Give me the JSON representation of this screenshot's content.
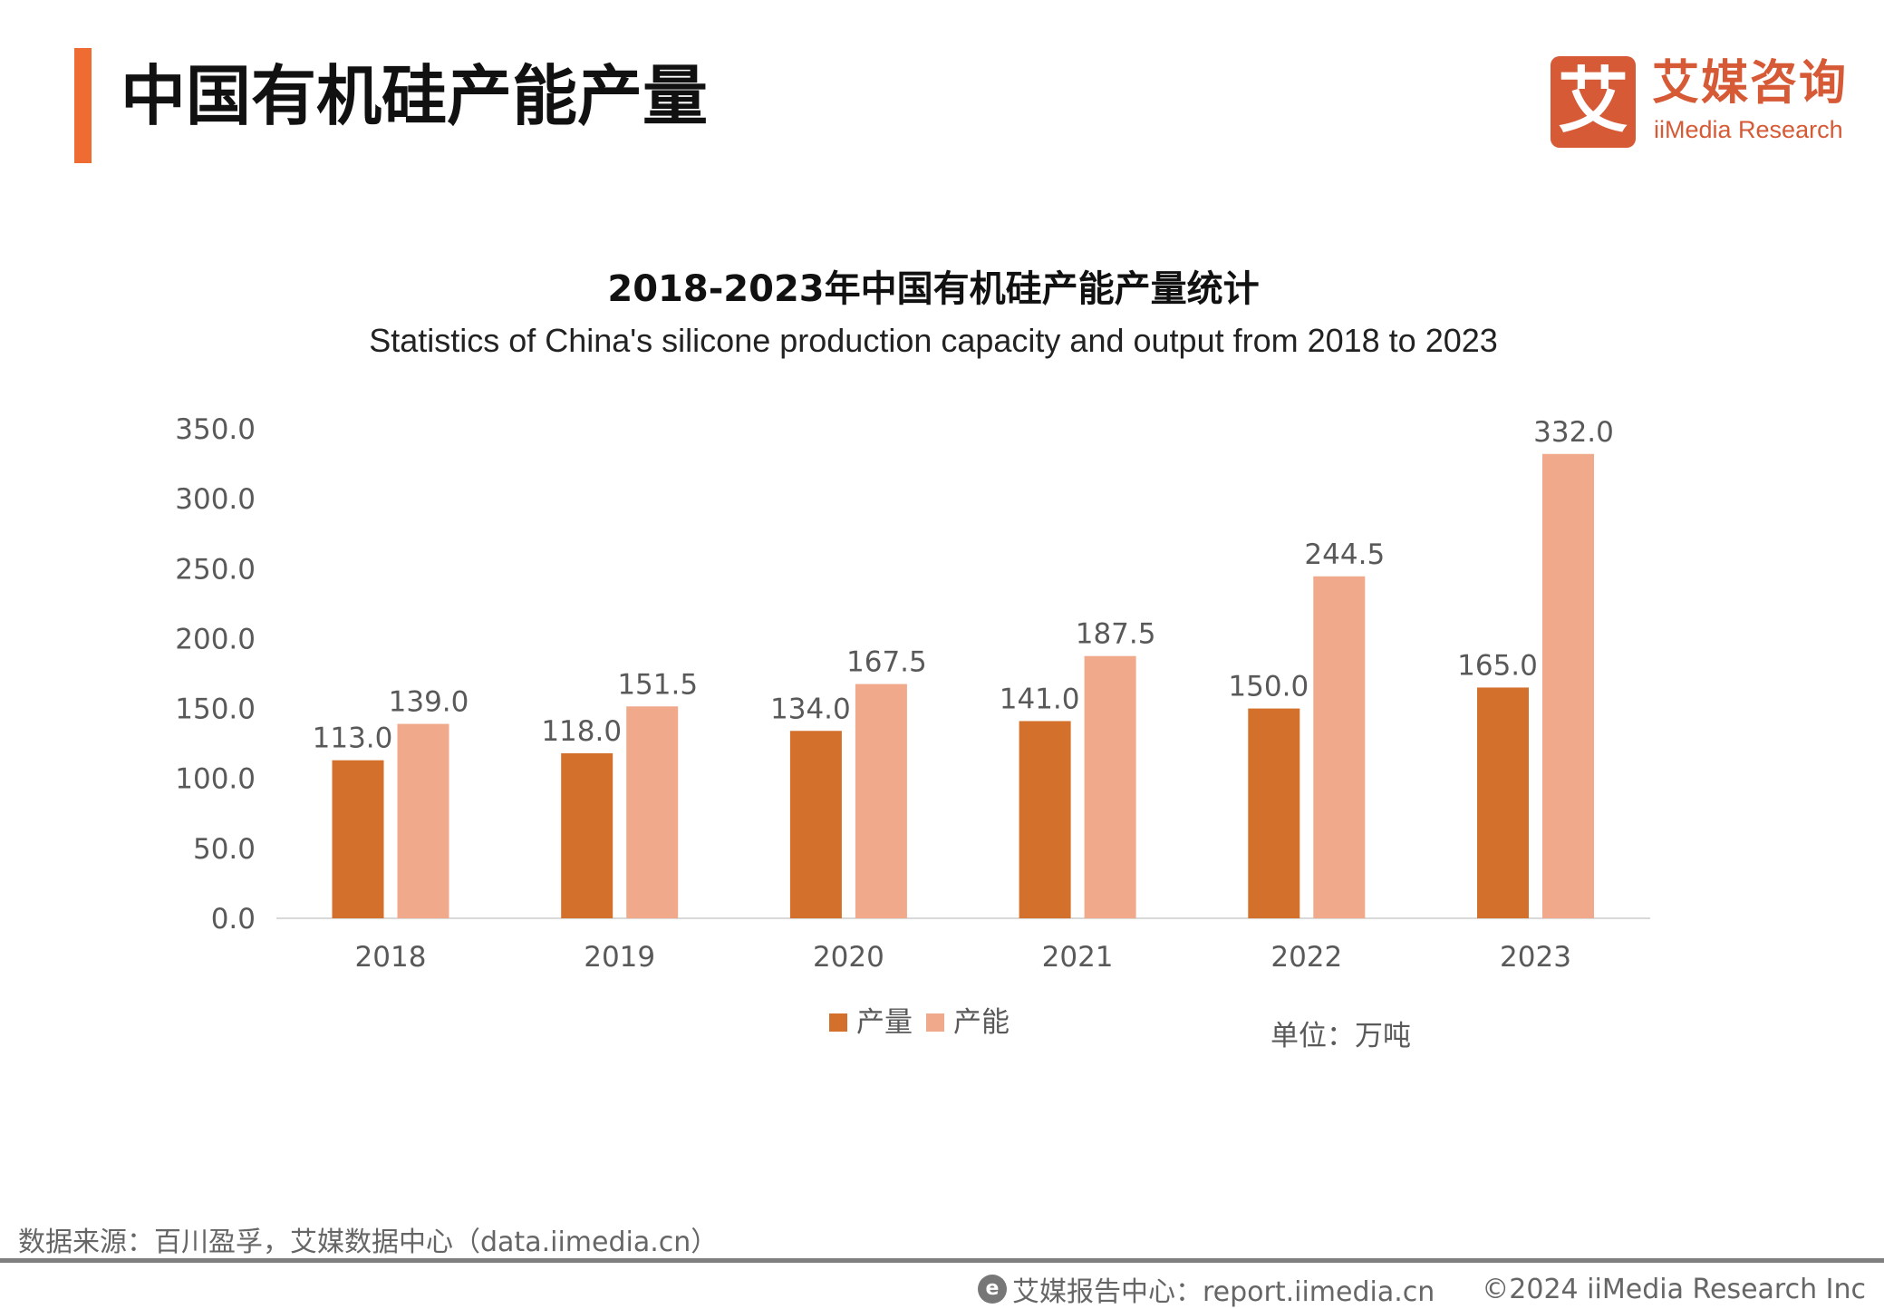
{
  "header": {
    "title": "中国有机硅产能产量"
  },
  "logo": {
    "mark": "艾",
    "cn": "艾媒咨询",
    "en": "iiMedia Research"
  },
  "chart_data": {
    "type": "bar",
    "title": "2018-2023年中国有机硅产能产量统计",
    "subtitle": "Statistics of China's silicone production capacity and output from 2018 to 2023",
    "categories": [
      "2018",
      "2019",
      "2020",
      "2021",
      "2022",
      "2023"
    ],
    "series": [
      {
        "name": "产量",
        "color": "#D2702C",
        "values": [
          113.0,
          118.0,
          134.0,
          141.0,
          150.0,
          165.0
        ]
      },
      {
        "name": "产能",
        "color": "#F0A98A",
        "values": [
          139.0,
          151.5,
          167.5,
          187.5,
          244.5,
          332.0
        ]
      }
    ],
    "ylim": [
      0,
      350
    ],
    "yticks": [
      "0.0",
      "50.0",
      "100.0",
      "150.0",
      "200.0",
      "250.0",
      "300.0",
      "350.0"
    ],
    "grid": false,
    "legend": "bottom",
    "unit": "单位：万吨"
  },
  "footer": {
    "source": "数据来源：百川盈孚，艾媒数据中心（data.iimedia.cn）",
    "report_center": "艾媒报告中心：report.iimedia.cn",
    "copyright": "©2024  iiMedia Research Inc"
  }
}
